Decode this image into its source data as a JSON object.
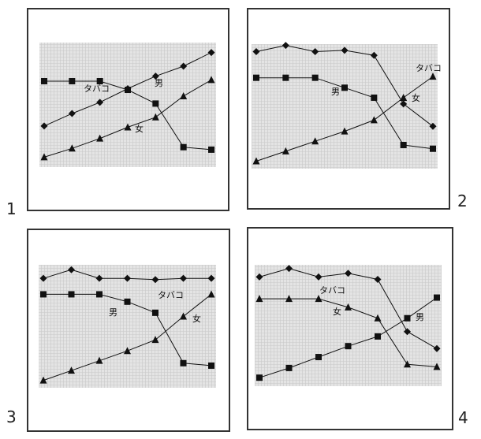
{
  "chart_data": [
    {
      "type": "line",
      "panel_number": "1",
      "x": [
        1,
        2,
        3,
        4,
        5,
        6,
        7
      ],
      "ylim": [
        0,
        10
      ],
      "series": [
        {
          "name": "タバコ",
          "marker": "diamond",
          "values": [
            3.3,
            4.3,
            5.2,
            6.3,
            7.3,
            8.1,
            9.2
          ]
        },
        {
          "name": "男",
          "marker": "square",
          "values": [
            6.9,
            6.9,
            6.9,
            6.2,
            5.1,
            1.6,
            1.4
          ]
        },
        {
          "name": "女",
          "marker": "triangle",
          "values": [
            0.8,
            1.5,
            2.3,
            3.2,
            4.0,
            5.7,
            7.0
          ]
        }
      ]
    },
    {
      "type": "line",
      "panel_number": "2",
      "x": [
        1,
        2,
        3,
        4,
        5,
        6,
        7
      ],
      "ylim": [
        0,
        10
      ],
      "series": [
        {
          "name": "タバコ",
          "marker": "diamond",
          "values": [
            9.4,
            9.9,
            9.4,
            9.5,
            9.1,
            5.2,
            3.4
          ]
        },
        {
          "name": "男",
          "marker": "square",
          "values": [
            7.3,
            7.3,
            7.3,
            6.5,
            5.7,
            1.9,
            1.6
          ]
        },
        {
          "name": "女",
          "marker": "triangle",
          "values": [
            0.6,
            1.4,
            2.2,
            3.0,
            3.9,
            5.7,
            7.4
          ]
        }
      ]
    },
    {
      "type": "line",
      "panel_number": "3",
      "x": [
        1,
        2,
        3,
        4,
        5,
        6,
        7
      ],
      "ylim": [
        0,
        10
      ],
      "series": [
        {
          "name": "タバコ",
          "marker": "diamond",
          "values": [
            8.9,
            9.6,
            8.9,
            8.9,
            8.8,
            8.9,
            8.9
          ]
        },
        {
          "name": "男",
          "marker": "square",
          "values": [
            7.6,
            7.6,
            7.6,
            7.0,
            6.1,
            2.0,
            1.8
          ]
        },
        {
          "name": "女",
          "marker": "triangle",
          "values": [
            0.6,
            1.4,
            2.2,
            3.0,
            3.9,
            5.8,
            7.6
          ]
        }
      ]
    },
    {
      "type": "line",
      "panel_number": "4",
      "x": [
        1,
        2,
        3,
        4,
        5,
        6,
        7
      ],
      "ylim": [
        0,
        10
      ],
      "series": [
        {
          "name": "タバコ",
          "marker": "diamond",
          "values": [
            9.0,
            9.7,
            9.0,
            9.3,
            8.8,
            4.5,
            3.1
          ]
        },
        {
          "name": "男",
          "marker": "square",
          "values": [
            0.7,
            1.5,
            2.4,
            3.3,
            4.1,
            5.6,
            7.3
          ]
        },
        {
          "name": "女",
          "marker": "triangle",
          "values": [
            7.2,
            7.2,
            7.2,
            6.5,
            5.6,
            1.8,
            1.6
          ]
        }
      ]
    }
  ]
}
